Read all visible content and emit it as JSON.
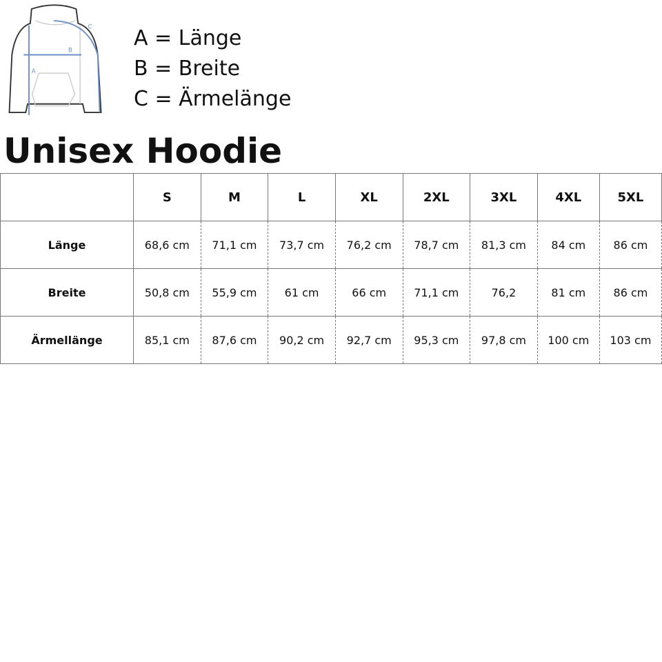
{
  "legend": [
    "A = Länge",
    "B = Breite",
    "C = Ärmelänge"
  ],
  "illustration": {
    "labels": [
      "A",
      "B",
      "C"
    ],
    "accent": "#6b8fc9"
  },
  "title": "Unisex Hoodie",
  "table": {
    "headers": [
      "",
      "S",
      "M",
      "L",
      "XL",
      "2XL",
      "3XL",
      "4XL",
      "5XL"
    ],
    "rows": [
      {
        "label": "Länge",
        "values": [
          "68,6 cm",
          "71,1 cm",
          "73,7 cm",
          "76,2 cm",
          "78,7 cm",
          "81,3 cm",
          "84 cm",
          "86 cm"
        ]
      },
      {
        "label": "Breite",
        "values": [
          "50,8 cm",
          "55,9 cm",
          "61 cm",
          "66 cm",
          "71,1 cm",
          "76,2",
          "81 cm",
          "86 cm"
        ]
      },
      {
        "label": "Ärmellänge",
        "values": [
          "85,1 cm",
          "87,6 cm",
          "90,2 cm",
          "92,7 cm",
          "95,3 cm",
          "97,8 cm",
          "100 cm",
          "103 cm"
        ]
      }
    ]
  }
}
